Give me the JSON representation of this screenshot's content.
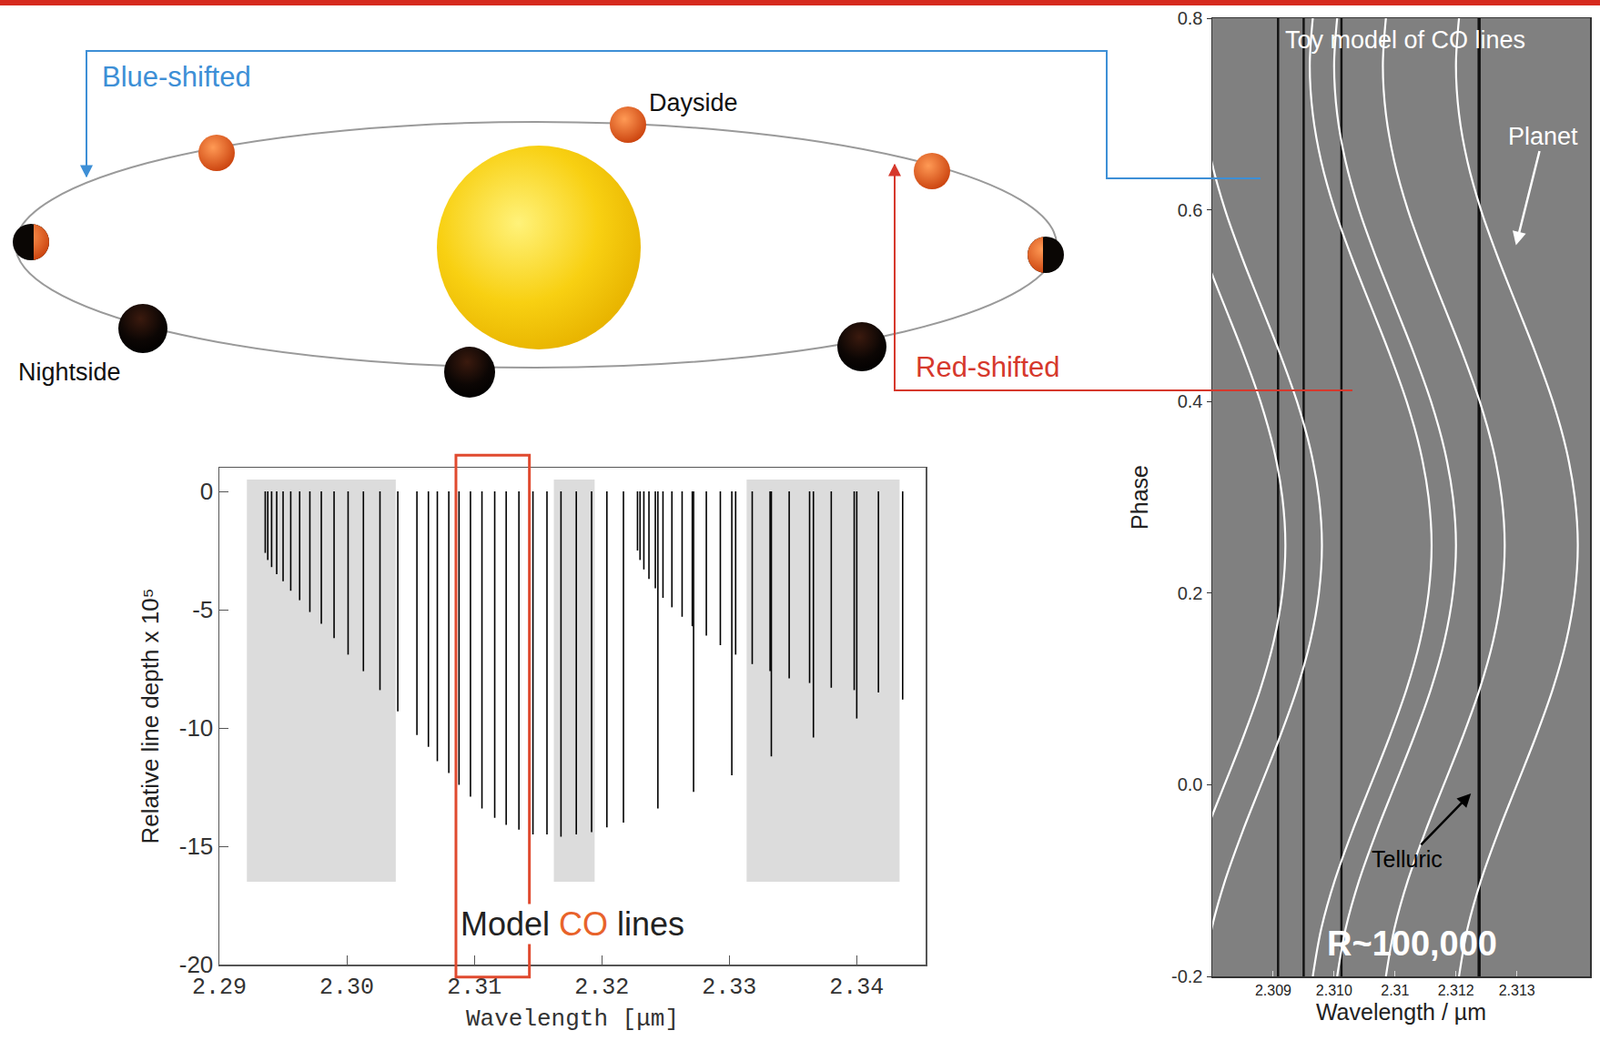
{
  "diagram": {
    "labels": {
      "blue_shift": "Blue-shifted",
      "dayside": "Dayside",
      "nightside": "Nightside",
      "red_shift": "Red-shifted"
    }
  },
  "chart_data": [
    {
      "type": "stem",
      "xlabel": "Wavelength [μm]",
      "ylabel": "Relative line depth x 10⁵",
      "annotation": {
        "text": "Model CO lines",
        "highlight": "CO",
        "highlight_color": "#e8632b"
      },
      "color": "#000000",
      "x": [
        2.2936,
        2.2938,
        2.2941,
        2.2945,
        2.295,
        2.2956,
        2.2963,
        2.2971,
        2.298,
        2.299,
        2.3001,
        2.3013,
        2.3026,
        2.304,
        2.3055,
        2.3071,
        2.3088,
        2.3106,
        2.3125,
        2.3146,
        2.3168,
        2.3192,
        2.3217,
        2.3244,
        2.3272,
        2.3302,
        2.3333,
        2.3366,
        2.34,
        2.3436,
        2.3064,
        2.308,
        2.3097,
        2.3116,
        2.3135,
        2.3157,
        2.318,
        2.3204,
        2.3228,
        2.323,
        2.3233,
        2.3237,
        2.3242,
        2.3248,
        2.3255,
        2.3263,
        2.3271,
        2.3282,
        2.3293,
        2.3305,
        2.3318,
        2.3332,
        2.3347,
        2.3363,
        2.338,
        2.3398,
        2.3417
      ],
      "values": [
        -2.6,
        -2.9,
        -3.2,
        -3.5,
        -3.8,
        -4.2,
        -4.6,
        -5.1,
        -5.6,
        -6.2,
        -6.9,
        -7.6,
        -8.4,
        -9.3,
        -10.3,
        -11.4,
        -12.4,
        -13.4,
        -14.1,
        -14.5,
        -14.6,
        -14.4,
        -14.0,
        -13.4,
        -12.7,
        -12.0,
        -11.2,
        -10.4,
        -9.6,
        -8.8,
        -10.8,
        -11.9,
        -12.9,
        -13.8,
        -14.3,
        -14.5,
        -14.5,
        -14.2,
        -2.5,
        -2.9,
        -3.3,
        -3.7,
        -4.1,
        -4.5,
        -4.9,
        -5.3,
        -5.7,
        -6.1,
        -6.5,
        -6.9,
        -7.3,
        -7.6,
        -7.9,
        -8.1,
        -8.3,
        -8.4,
        -8.5
      ],
      "shaded": {
        "color": "#dcdcdc",
        "regions": [
          {
            "x0": 2.29216,
            "x1": 2.30384,
            "y0": -16.5,
            "y1": 0.5
          },
          {
            "x0": 2.31624,
            "x1": 2.31944,
            "y0": -16.5,
            "y1": 0.5
          },
          {
            "x0": 2.33136,
            "x1": 2.34336,
            "y0": -16.5,
            "y1": 0.5
          }
        ]
      },
      "box": {
        "x0": 2.30856,
        "x1": 2.31432,
        "color": "#e04a2f"
      },
      "xlim": [
        2.29,
        2.3454
      ],
      "ylim": [
        -20,
        1
      ],
      "xticks": [
        2.29,
        {
          "value": 2.3,
          "label": "2.30"
        },
        2.31,
        2.32,
        2.33,
        2.34
      ],
      "yticks": [
        -20,
        -15,
        -10,
        -5,
        0
      ]
    },
    {
      "type": "line",
      "title": "Toy model of CO lines",
      "xlabel": "Wavelength / µm",
      "ylabel": "Phase",
      "annotations": {
        "planet": "Planet",
        "telluric": "Telluric",
        "resolution": "R~100,000"
      },
      "background": "#808080",
      "curve_color": "#ffffff",
      "telluric_color": "#000000",
      "telluric_lines": [
        2.30908,
        2.3095,
        2.31012,
        2.31238
      ],
      "phase": [
        -0.2,
        -0.15,
        -0.1,
        -0.05,
        0,
        0.05,
        0.1,
        0.15,
        0.2,
        0.25,
        0.3,
        0.35,
        0.4,
        0.45,
        0.5,
        0.55,
        0.6,
        0.65,
        0.7,
        0.75,
        0.8
      ],
      "curves": [
        {
          "wavelength": [
            2.30725,
            2.30739,
            2.30761,
            2.30789,
            2.3082,
            2.30851,
            2.30879,
            2.30901,
            2.30915,
            2.3092,
            2.30915,
            2.30901,
            2.30879,
            2.30851,
            2.3082,
            2.30789,
            2.30761,
            2.30739,
            2.30725,
            2.3072,
            2.30725
          ]
        },
        {
          "wavelength": [
            2.30785,
            2.30799,
            2.30821,
            2.30849,
            2.3088,
            2.30911,
            2.30939,
            2.30961,
            2.30975,
            2.3098,
            2.30975,
            2.30961,
            2.30939,
            2.30911,
            2.3088,
            2.30849,
            2.30821,
            2.30799,
            2.30785,
            2.3078,
            2.30785
          ]
        },
        {
          "wavelength": [
            2.30965,
            2.30979,
            2.31001,
            2.31029,
            2.3106,
            2.31091,
            2.31119,
            2.31141,
            2.31155,
            2.3116,
            2.31155,
            2.31141,
            2.31119,
            2.31091,
            2.3106,
            2.31029,
            2.31001,
            2.30979,
            2.30965,
            2.3096,
            2.30965
          ]
        },
        {
          "wavelength": [
            2.31005,
            2.31019,
            2.31041,
            2.31069,
            2.311,
            2.31131,
            2.31159,
            2.31181,
            2.31195,
            2.312,
            2.31195,
            2.31181,
            2.31159,
            2.31131,
            2.311,
            2.31069,
            2.31041,
            2.31019,
            2.31005,
            2.31,
            2.31005
          ]
        },
        {
          "wavelength": [
            2.31085,
            2.31099,
            2.31121,
            2.31149,
            2.3118,
            2.31211,
            2.31239,
            2.31261,
            2.31275,
            2.3128,
            2.31275,
            2.31261,
            2.31239,
            2.31211,
            2.3118,
            2.31149,
            2.31121,
            2.31099,
            2.31085,
            2.3108,
            2.31085
          ]
        },
        {
          "wavelength": [
            2.31205,
            2.31219,
            2.31241,
            2.31269,
            2.313,
            2.31331,
            2.31359,
            2.31381,
            2.31395,
            2.314,
            2.31395,
            2.31381,
            2.31359,
            2.31331,
            2.313,
            2.31269,
            2.31241,
            2.31219,
            2.31205,
            2.312,
            2.31205
          ]
        }
      ],
      "xlim": [
        2.308,
        2.3142
      ],
      "ylim": [
        -0.2,
        0.8
      ],
      "xticks": [
        2.309,
        {
          "value": 2.31,
          "label": "2.310"
        },
        {
          "value": 2.311,
          "label": "2.31"
        },
        2.312,
        2.313
      ],
      "yticks": [
        -0.2,
        {
          "value": 0,
          "label": "0.0"
        },
        0.2,
        0.4,
        0.6,
        0.8
      ]
    }
  ]
}
